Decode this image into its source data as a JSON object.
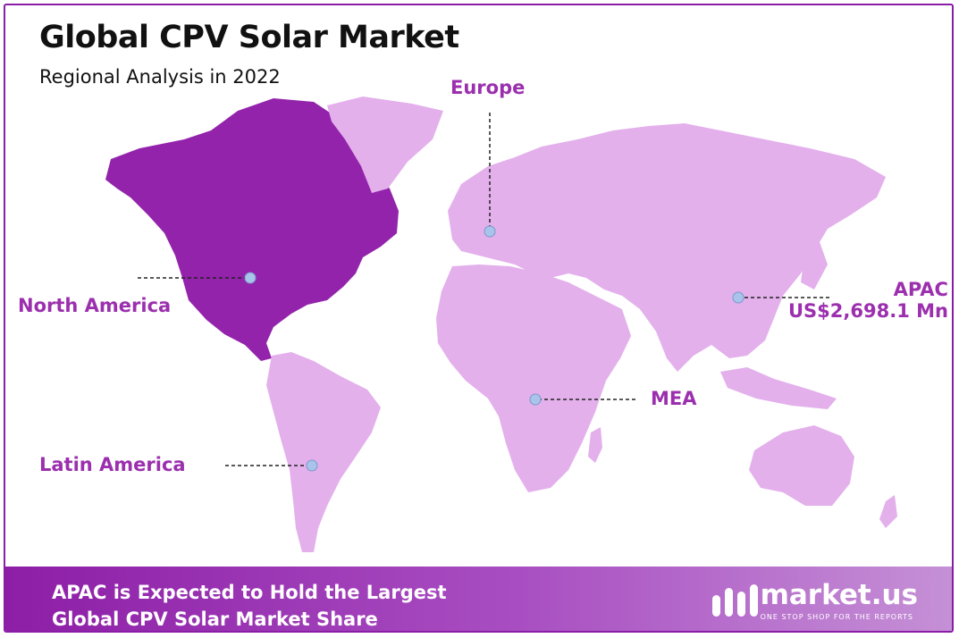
{
  "title": "Global CPV Solar Market",
  "subtitle": "Regional Analysis in 2022",
  "regions": {
    "north_america": {
      "name": "North America",
      "highlighted": true
    },
    "europe": {
      "name": "Europe"
    },
    "apac": {
      "name": "APAC",
      "value": "US$2,698.1 Mn"
    },
    "mea": {
      "name": "MEA"
    },
    "latin_america": {
      "name": "Latin America"
    }
  },
  "footer": {
    "line1": "APAC is Expected to Hold the Largest",
    "line2": "Global CPV Solar Market Share"
  },
  "brand": {
    "name": "market.us",
    "tagline": "ONE STOP SHOP FOR THE REPORTS"
  },
  "colors": {
    "highlight_region": "#9323ab",
    "other_regions": "#e3b0ec",
    "label_text": "#9b2fae",
    "marker": "#a9c4ea",
    "footer_start": "#8d1ea6",
    "footer_end": "#c590d6"
  }
}
